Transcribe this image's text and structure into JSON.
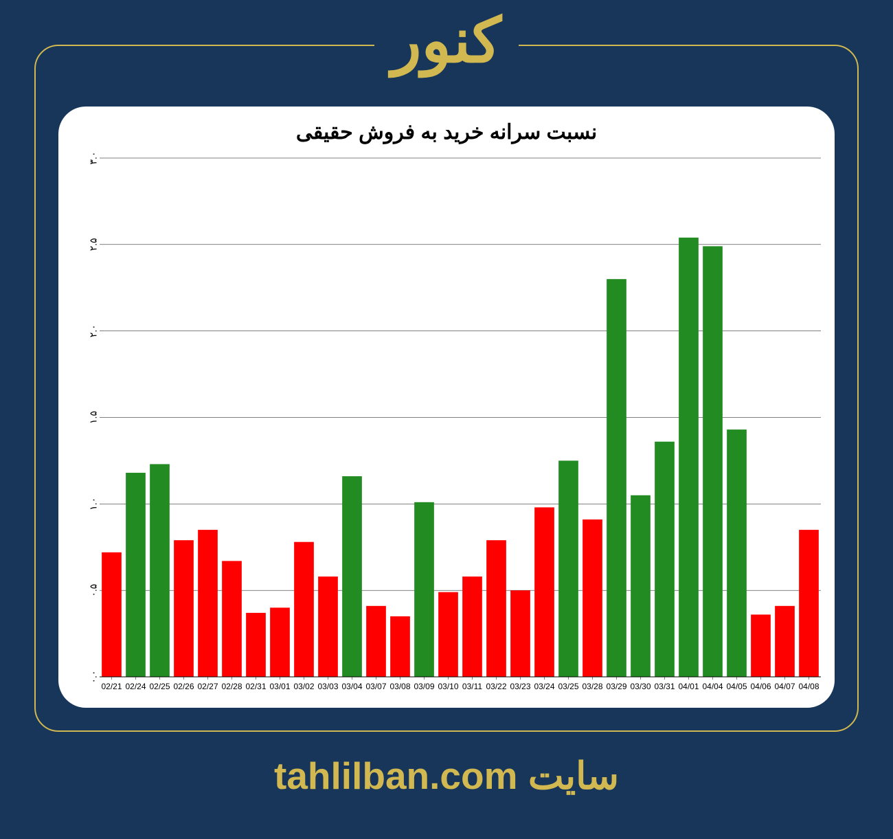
{
  "page": {
    "background_color": "#17365a",
    "accent_color": "#d1b850",
    "frame_border_color": "#d1b850",
    "card_background": "#ffffff"
  },
  "title": "کنور",
  "footer_prefix": "سایت",
  "footer_url": "tahlilban.com",
  "chart": {
    "type": "bar",
    "title": "نسبت سرانه خرید به فروش حقیقی",
    "title_fontsize": 30,
    "ylim": [
      0,
      3.0
    ],
    "ytick_step": 0.5,
    "y_tick_labels": [
      "۰.۰",
      "۰.۵",
      "۱.۰",
      "۱.۵",
      "۲.۰",
      "۲.۵",
      "۳.۰"
    ],
    "grid_color": "#000000",
    "grid_width": 0.5,
    "axis_color": "#000000",
    "bar_width_ratio": 0.82,
    "color_green": "#228b22",
    "color_red": "#ff0000",
    "categories": [
      "02/21",
      "02/24",
      "02/25",
      "02/26",
      "02/27",
      "02/28",
      "02/31",
      "03/01",
      "03/02",
      "03/03",
      "03/04",
      "03/07",
      "03/08",
      "03/09",
      "03/10",
      "03/11",
      "03/22",
      "03/23",
      "03/24",
      "03/25",
      "03/28",
      "03/29",
      "03/30",
      "03/31",
      "04/01",
      "04/04",
      "04/05",
      "04/06",
      "04/07",
      "04/08"
    ],
    "values": [
      0.72,
      1.18,
      1.23,
      0.79,
      0.85,
      0.67,
      0.37,
      0.4,
      0.78,
      0.58,
      1.16,
      0.41,
      0.35,
      1.01,
      0.49,
      0.58,
      0.79,
      0.5,
      0.98,
      1.25,
      0.91,
      2.3,
      1.05,
      1.36,
      2.54,
      2.49,
      1.43,
      0.36,
      0.41,
      0.85
    ],
    "colors": [
      "red",
      "green",
      "green",
      "red",
      "red",
      "red",
      "red",
      "red",
      "red",
      "red",
      "green",
      "red",
      "red",
      "green",
      "red",
      "red",
      "red",
      "red",
      "red",
      "green",
      "red",
      "green",
      "green",
      "green",
      "green",
      "green",
      "green",
      "red",
      "red",
      "red"
    ]
  }
}
